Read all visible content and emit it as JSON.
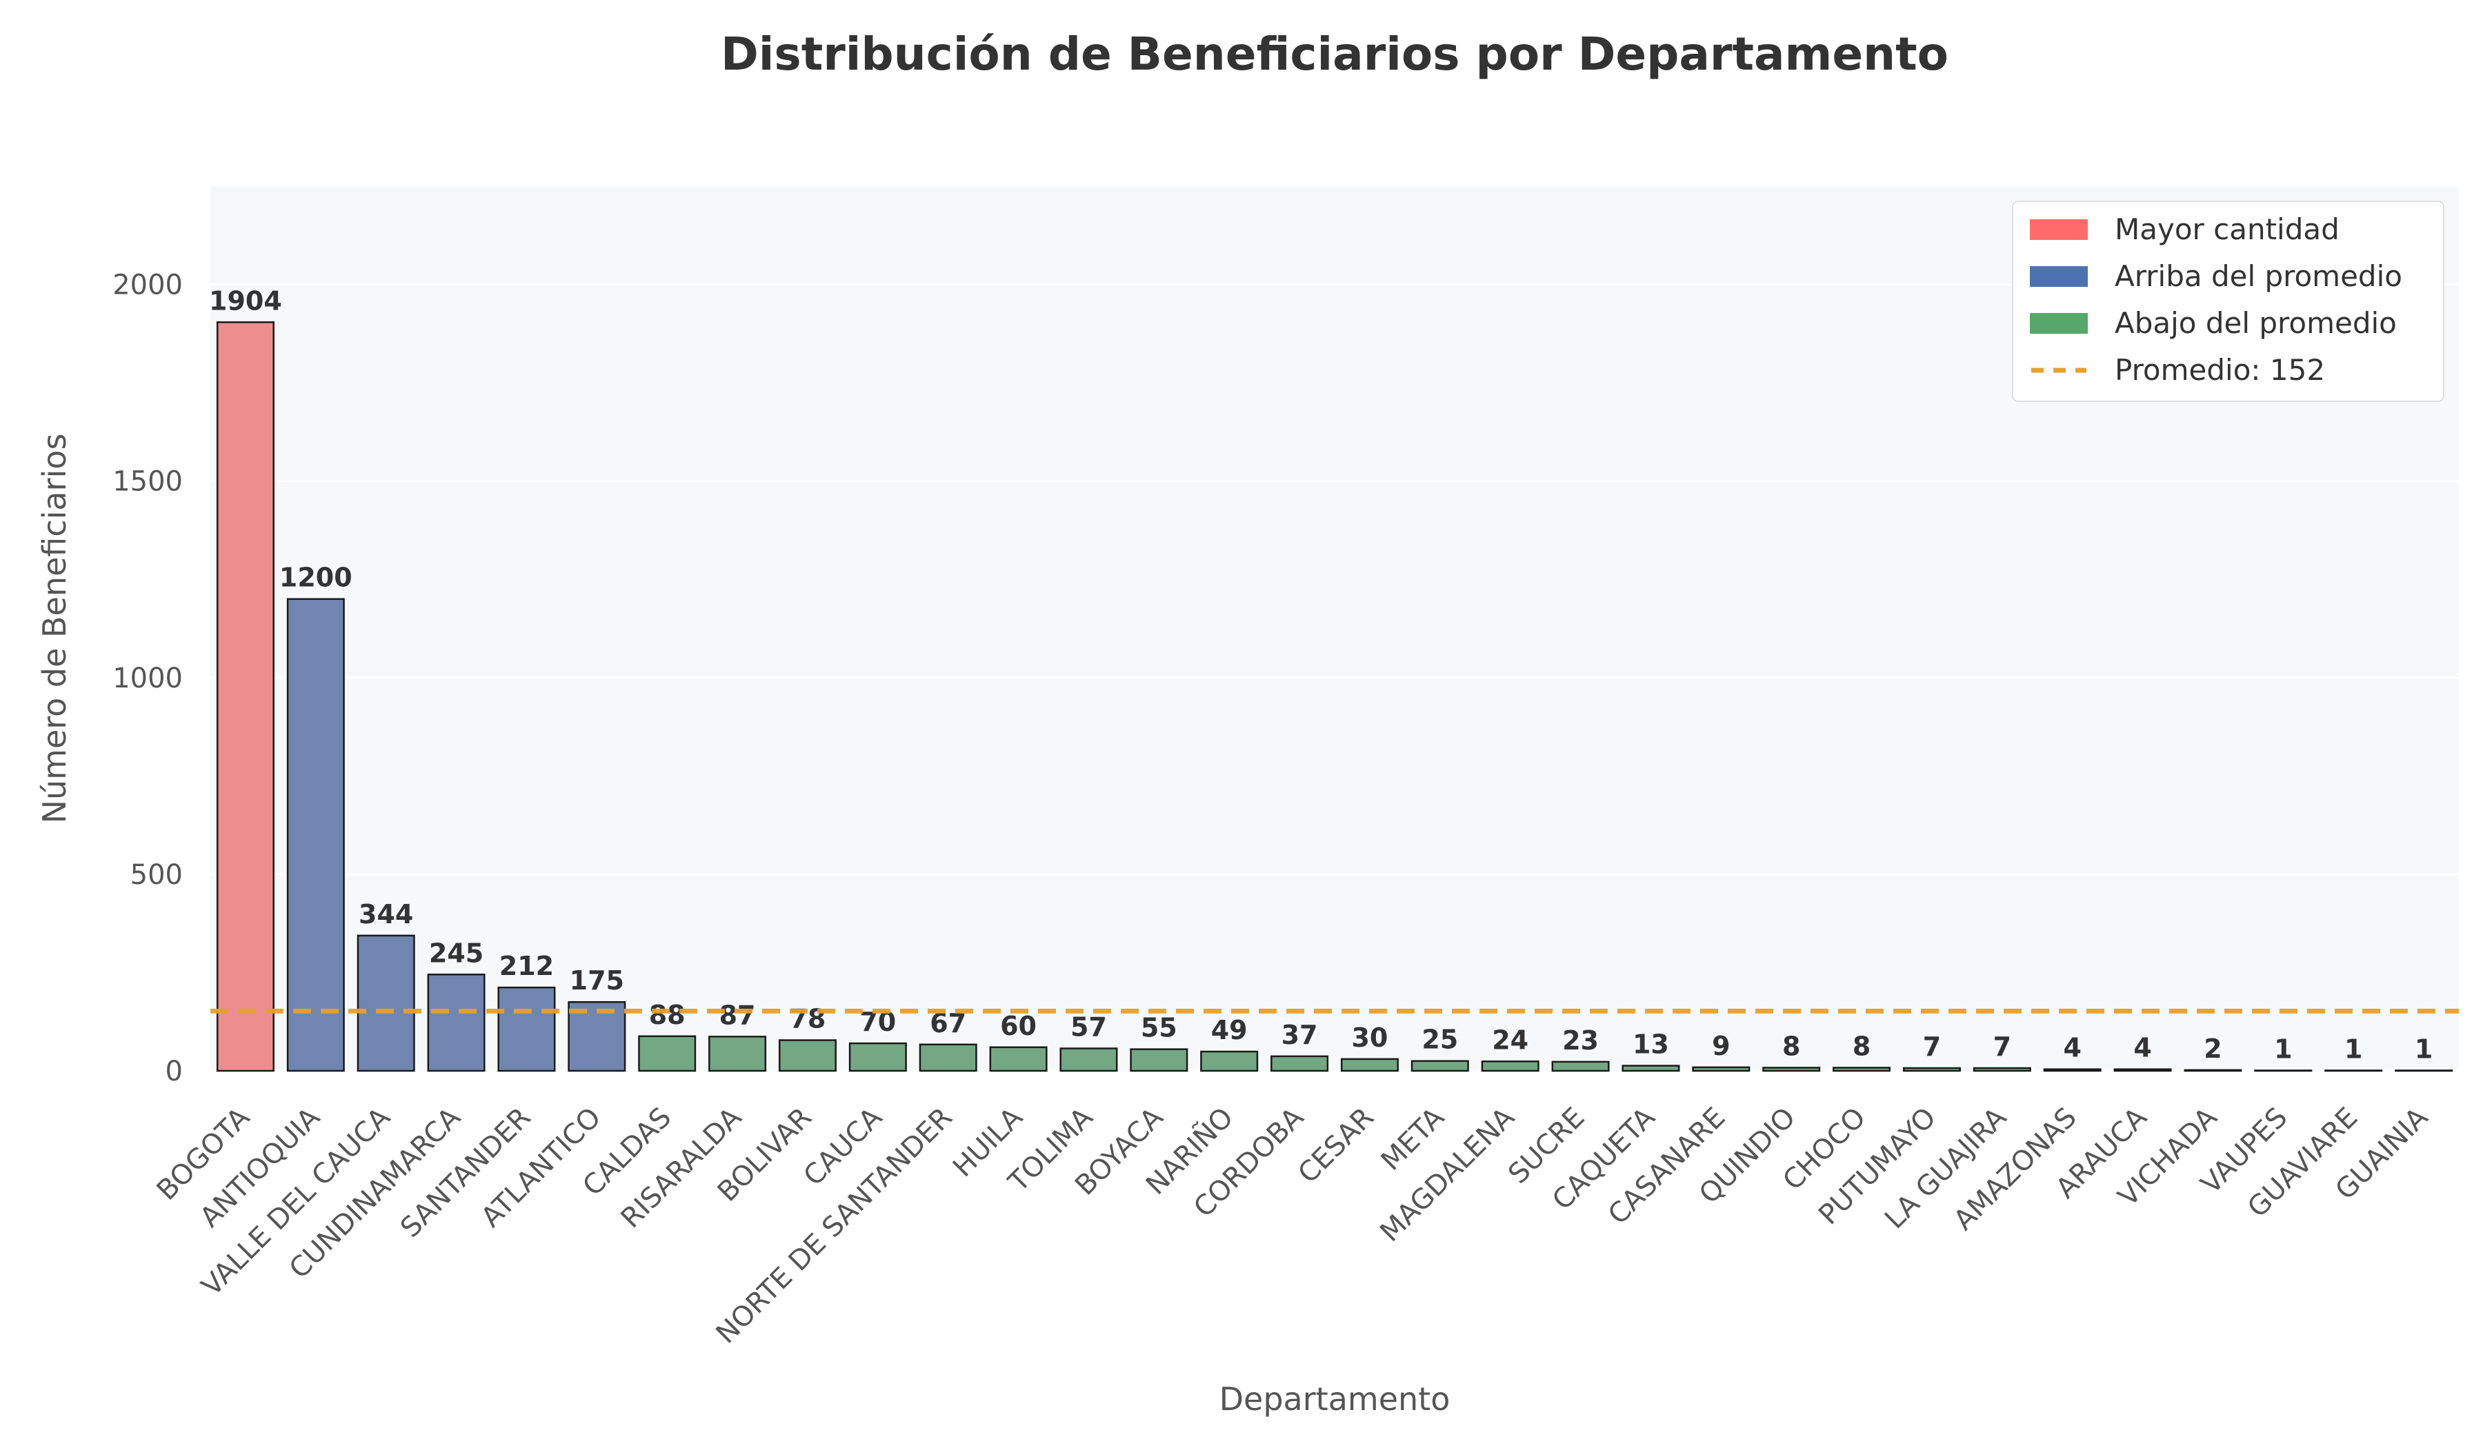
{
  "chart_data": {
    "type": "bar",
    "title": "Distribución de Beneficiarios por Departamento",
    "xlabel": "Departamento",
    "ylabel": "Número de Beneficiarios",
    "ylim": [
      0,
      2250
    ],
    "yticks": [
      0,
      500,
      1000,
      1500,
      2000
    ],
    "grid": true,
    "legend_position": "top-right",
    "categories": [
      "BOGOTA",
      "ANTIOQUIA",
      "VALLE DEL CAUCA",
      "CUNDINAMARCA",
      "SANTANDER",
      "ATLANTICO",
      "CALDAS",
      "RISARALDA",
      "BOLIVAR",
      "CAUCA",
      "NORTE DE SANTANDER",
      "HUILA",
      "TOLIMA",
      "BOYACA",
      "NARIÑO",
      "CORDOBA",
      "CESAR",
      "META",
      "MAGDALENA",
      "SUCRE",
      "CAQUETA",
      "CASANARE",
      "QUINDIO",
      "CHOCO",
      "PUTUMAYO",
      "LA GUAJIRA",
      "AMAZONAS",
      "ARAUCA",
      "VICHADA",
      "VAUPES",
      "GUAVIARE",
      "GUAINIA"
    ],
    "values": [
      1904,
      1200,
      344,
      245,
      212,
      175,
      88,
      87,
      78,
      70,
      67,
      60,
      57,
      55,
      49,
      37,
      30,
      25,
      24,
      23,
      13,
      9,
      8,
      8,
      7,
      7,
      4,
      4,
      2,
      1,
      1,
      1
    ],
    "bar_groups": [
      "max",
      "above",
      "above",
      "above",
      "above",
      "above",
      "below",
      "below",
      "below",
      "below",
      "below",
      "below",
      "below",
      "below",
      "below",
      "below",
      "below",
      "below",
      "below",
      "below",
      "below",
      "below",
      "below",
      "below",
      "below",
      "below",
      "below",
      "below",
      "below",
      "below",
      "below",
      "below"
    ],
    "average": 152,
    "legend": [
      {
        "label": "Mayor cantidad",
        "kind": "patch",
        "color": "#ff6b6b"
      },
      {
        "label": "Arriba del promedio",
        "kind": "patch",
        "color": "#4c72b0"
      },
      {
        "label": "Abajo del promedio",
        "kind": "patch",
        "color": "#55a868"
      },
      {
        "label": "Promedio: 152",
        "kind": "dashed-line",
        "color": "#e5a030"
      }
    ],
    "colors": {
      "max": "#ec8e8e",
      "above": "#7086b0",
      "below": "#74a783",
      "average_line": "#e5a030",
      "plot_bg": "#f7f8fa"
    }
  }
}
